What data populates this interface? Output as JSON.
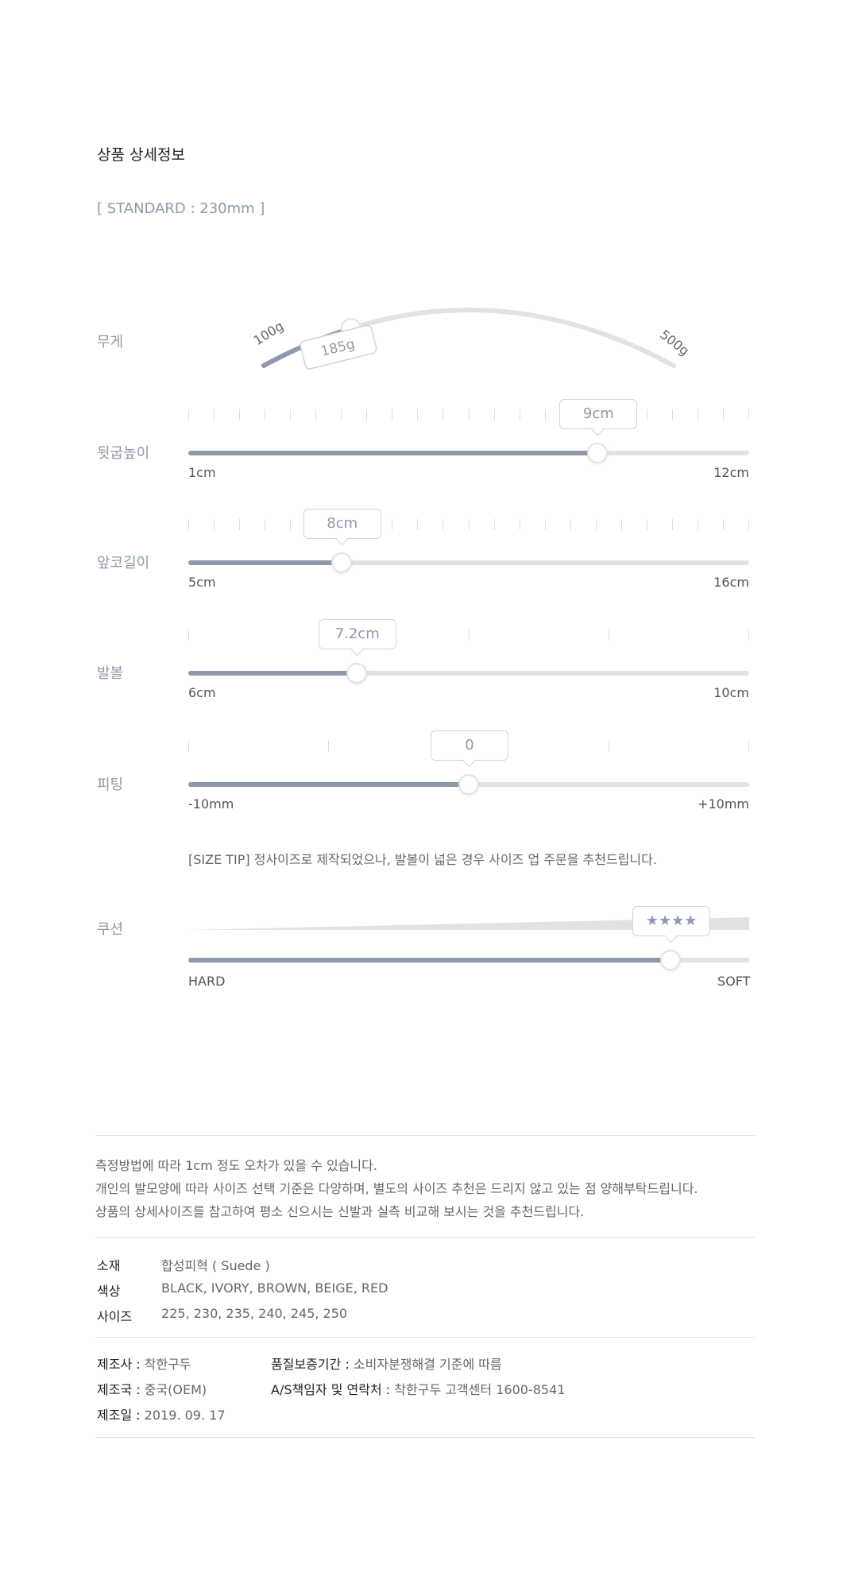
{
  "title": "상품 상세정보",
  "standard": "[ STANDARD : 230mm ]",
  "weight": {
    "label": "무게",
    "min_label": "100g",
    "max_label": "500g",
    "value_label": "185g",
    "min": 100,
    "max": 500,
    "value": 185
  },
  "sliders": [
    {
      "key": "heel",
      "label": "뒷굽높이",
      "min_label": "1cm",
      "max_label": "12cm",
      "value_label": "9cm",
      "fraction": 0.73,
      "ticks": 12
    },
    {
      "key": "toe",
      "label": "앞코길이",
      "min_label": "5cm",
      "max_label": "16cm",
      "value_label": "8cm",
      "fraction": 0.273,
      "ticks": 12
    },
    {
      "key": "width",
      "label": "발볼",
      "min_label": "6cm",
      "max_label": "10cm",
      "value_label": "7.2cm",
      "fraction": 0.3,
      "ticks": 5
    },
    {
      "key": "fit",
      "label": "피팅",
      "min_label": "-10mm",
      "max_label": "+10mm",
      "value_label": "0",
      "fraction": 0.5,
      "ticks": 5
    }
  ],
  "size_tip": "[SIZE TIP] 정사이즈로 제작되었으나, 발볼이 넓은 경우 사이즈 업 주문을 추천드립니다.",
  "cushion": {
    "label": "쿠션",
    "min_label": "HARD",
    "max_label": "SOFT",
    "value_label": "★★★★",
    "fraction": 0.86
  },
  "notes": [
    "측정방법에 따라 1cm 정도 오차가 있을 수 있습니다.",
    "개인의 발모양에 따라 사이즈 선택 기준은 다양하며, 별도의 사이즈 추천은 드리지 않고 있는 점 양해부탁드립니다.",
    "상품의 상세사이즈를 참고하여 평소 신으시는 신발과 실측 비교해 보시는 것을 추천드립니다."
  ],
  "specs": [
    {
      "key": "소재",
      "value": "합성피혁 ( Suede )"
    },
    {
      "key": "색상",
      "value": "BLACK, IVORY, BROWN, BEIGE, RED"
    },
    {
      "key": "사이즈",
      "value": "225, 230, 235, 240, 245, 250"
    }
  ],
  "info": {
    "maker_k": "제조사 :",
    "maker_v": "착한구두",
    "country_k": "제조국 :",
    "country_v": "중국(OEM)",
    "date_k": "제조일 :",
    "date_v": "2019. 09. 17",
    "warranty_k": "품질보증기간 :",
    "warranty_v": "소비자분쟁해결 기준에 따름",
    "as_k": "A/S책임자 및 연락처 :",
    "as_v": "착한구두 고객센터 1600-8541"
  },
  "colors": {
    "accent": "#8e9aab",
    "track": "#e2e2e2"
  }
}
